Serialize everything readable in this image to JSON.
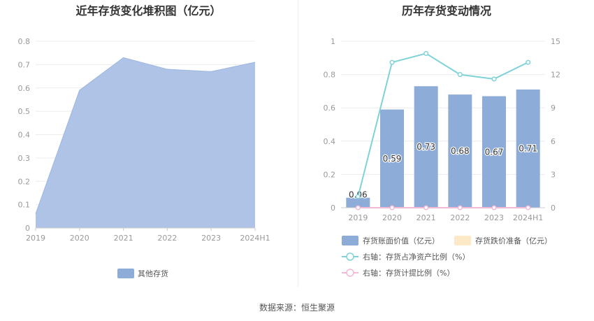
{
  "footer": {
    "source": "数据来源：恒生聚源"
  },
  "chart_data": [
    {
      "type": "area",
      "title": "近年存货变化堆积图（亿元）",
      "categories": [
        "2019",
        "2020",
        "2021",
        "2022",
        "2023",
        "2024H1"
      ],
      "y_ticks": [
        "0",
        "0.1",
        "0.2",
        "0.3",
        "0.4",
        "0.5",
        "0.6",
        "0.7",
        "0.8"
      ],
      "ylim": [
        0,
        0.8
      ],
      "grid": true,
      "legend_position": "bottom",
      "series": [
        {
          "name": "其他存货",
          "values": [
            0.06,
            0.59,
            0.73,
            0.68,
            0.67,
            0.71
          ],
          "color": "#aec3e6"
        }
      ],
      "legend_color": "#8eacd8"
    },
    {
      "type": "bar",
      "title": "历年存货变动情况",
      "categories": [
        "2019",
        "2020",
        "2021",
        "2022",
        "2023",
        "2024H1"
      ],
      "y_left_ticks": [
        "0",
        "0.2",
        "0.4",
        "0.6",
        "0.8",
        "1"
      ],
      "y_right_ticks": [
        "0",
        "3",
        "6",
        "9",
        "12",
        "15"
      ],
      "ylim": [
        0,
        1
      ],
      "y2lim": [
        0,
        15
      ],
      "grid": true,
      "legend_position": "bottom",
      "series": [
        {
          "name": "存货账面价值（亿元）",
          "type": "bar",
          "values": [
            0.06,
            0.59,
            0.73,
            0.68,
            0.67,
            0.71
          ],
          "labels": [
            "0.06",
            "0.59",
            "0.73",
            "0.68",
            "0.67",
            "0.71"
          ],
          "color": "#8eacd8"
        },
        {
          "name": "存货跌价准备（亿元）",
          "type": "bar",
          "values": [
            0,
            0,
            0,
            0,
            0,
            0
          ],
          "color": "#fde9c7"
        },
        {
          "name": "右轴：存货占净资产比例（%）",
          "type": "line",
          "axis": "right",
          "values": [
            1.0,
            13.1,
            13.9,
            12.0,
            11.6,
            13.1
          ],
          "color": "#7fd3d8"
        },
        {
          "name": "右轴：存货计提比例（%）",
          "type": "line",
          "axis": "right",
          "values": [
            0,
            0,
            0,
            0,
            0,
            0
          ],
          "color": "#f2b8d6"
        }
      ]
    }
  ]
}
